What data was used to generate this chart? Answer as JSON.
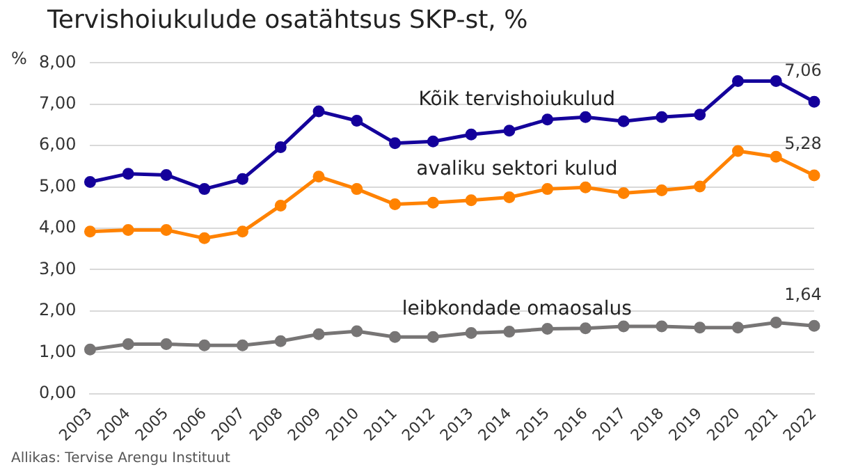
{
  "chart_data": {
    "type": "line",
    "title": "Tervishoiukulude osatähtsus SKP-st, %",
    "ylabel": "%",
    "categories": [
      "2003",
      "2004",
      "2005",
      "2006",
      "2007",
      "2008",
      "2009",
      "2010",
      "2011",
      "2012",
      "2013",
      "2014",
      "2015",
      "2016",
      "2017",
      "2018",
      "2019",
      "2020",
      "2021",
      "2022"
    ],
    "series": [
      {
        "name": "Kõik tervishoiukulud",
        "color": "#14009b",
        "values": [
          5.12,
          5.32,
          5.29,
          4.95,
          5.19,
          5.96,
          6.83,
          6.6,
          6.06,
          6.1,
          6.27,
          6.36,
          6.63,
          6.69,
          6.59,
          6.69,
          6.75,
          7.56,
          7.56,
          7.06
        ],
        "value_labels": [
          null,
          null,
          null,
          null,
          null,
          null,
          null,
          null,
          null,
          null,
          null,
          null,
          null,
          null,
          null,
          null,
          null,
          null,
          null,
          "7,06"
        ]
      },
      {
        "name": "avaliku sektori kulud",
        "color": "#ff8200",
        "values": [
          3.92,
          3.96,
          3.96,
          3.76,
          3.92,
          4.55,
          5.25,
          4.95,
          4.58,
          4.62,
          4.68,
          4.75,
          4.95,
          4.99,
          4.85,
          4.92,
          5.01,
          5.87,
          5.73,
          5.28
        ],
        "value_labels": [
          null,
          null,
          null,
          null,
          null,
          null,
          null,
          null,
          null,
          null,
          null,
          null,
          null,
          null,
          null,
          null,
          null,
          null,
          null,
          "5,28"
        ]
      },
      {
        "name": "leibkondade omaosalus",
        "color": "#777575",
        "values": [
          1.07,
          1.2,
          1.2,
          1.17,
          1.17,
          1.27,
          1.44,
          1.51,
          1.37,
          1.37,
          1.47,
          1.5,
          1.57,
          1.58,
          1.63,
          1.63,
          1.6,
          1.6,
          1.72,
          1.64
        ],
        "value_labels": [
          null,
          null,
          null,
          null,
          null,
          null,
          null,
          null,
          null,
          null,
          null,
          null,
          null,
          null,
          null,
          null,
          null,
          null,
          null,
          "1,64"
        ]
      }
    ],
    "ylim": [
      0,
      8
    ],
    "yticks": [
      {
        "value": 0,
        "label": "0,00"
      },
      {
        "value": 1,
        "label": "1,00"
      },
      {
        "value": 2,
        "label": "2,00"
      },
      {
        "value": 3,
        "label": "3,00"
      },
      {
        "value": 4,
        "label": "4,00"
      },
      {
        "value": 5,
        "label": "5,00"
      },
      {
        "value": 6,
        "label": "6,00"
      },
      {
        "value": 7,
        "label": "7,00"
      },
      {
        "value": 8,
        "label": "8,00"
      }
    ],
    "grid": "y",
    "legend": false,
    "marker": "circle",
    "line_style": "solid",
    "annotations": [
      "Allikas: Tervise Arengu Instituut"
    ]
  }
}
